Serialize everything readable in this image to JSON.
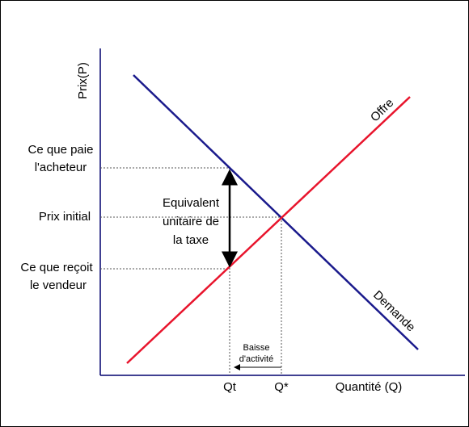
{
  "axes": {
    "y_label": "Prix(P)",
    "x_label": "Quantité (Q)"
  },
  "price_labels": {
    "buyer": [
      "Ce que paie",
      "l'acheteur"
    ],
    "initial": "Prix initial",
    "seller": [
      "Ce que reçoit",
      "le vendeur"
    ]
  },
  "curves": {
    "supply": "Offre",
    "demand": "Demande"
  },
  "tax_label": [
    "Equivalent",
    "unitaire de",
    "la taxe"
  ],
  "quantity_labels": {
    "qt": "Qt",
    "qstar": "Q*"
  },
  "activity_label": [
    "Baisse",
    "d'activité"
  ]
}
